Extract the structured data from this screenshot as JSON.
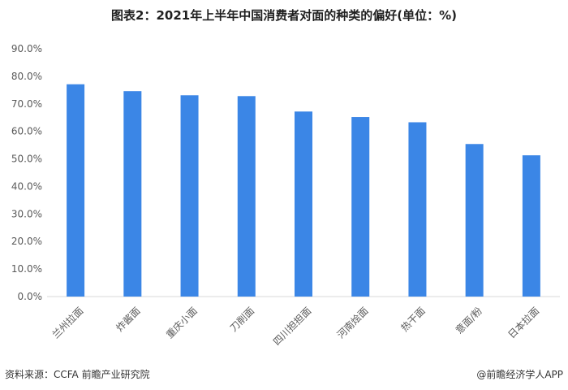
{
  "chart_data": {
    "type": "bar",
    "title": "图表2：2021年上半年中国消费者对面的种类的偏好(单位：%)",
    "categories": [
      "兰州拉面",
      "炸酱面",
      "重庆小面",
      "刀削面",
      "四川担担面",
      "河南烩面",
      "热干面",
      "意面/粉",
      "日本拉面"
    ],
    "values": [
      77.1,
      74.6,
      73.1,
      72.8,
      67.2,
      65.2,
      63.3,
      55.4,
      51.3
    ],
    "y_ticks": [
      "0.0%",
      "10.0%",
      "20.0%",
      "30.0%",
      "40.0%",
      "50.0%",
      "60.0%",
      "70.0%",
      "80.0%",
      "90.0%"
    ],
    "ylim": [
      0,
      90
    ],
    "bar_color": "#3b86e6",
    "grid": false,
    "xlabel": "",
    "ylabel": ""
  },
  "footer": {
    "source": "资料来源：CCFA 前瞻产业研究院",
    "credit": "@前瞻经济学人APP"
  }
}
